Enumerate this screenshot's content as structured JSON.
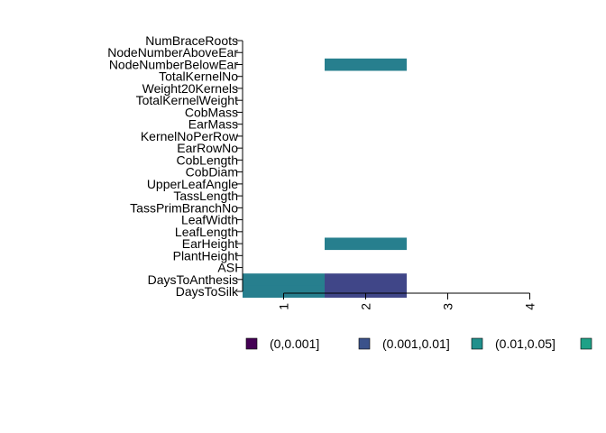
{
  "chart_data": {
    "type": "heatmap",
    "title": "",
    "xlabel": "",
    "ylabel": "",
    "x_ticks": [
      "1",
      "2",
      "3",
      "4"
    ],
    "xlim": [
      0.5,
      4.0
    ],
    "rows": [
      "NumBraceRoots",
      "NodeNumberAboveEar",
      "NodeNumberBelowEar",
      "TotalKernelNo",
      "Weight20Kernels",
      "TotalKernelWeight",
      "CobMass",
      "EarMass",
      "KernelNoPerRow",
      "EarRowNo",
      "CobLength",
      "CobDiam",
      "UpperLeafAngle",
      "TassLength",
      "TassPrimBranchNo",
      "LeafWidth",
      "LeafLength",
      "EarHeight",
      "PlantHeight",
      "ASI",
      "DaysToAnthesis",
      "DaysToSilk"
    ],
    "cells": [
      {
        "row": "NodeNumberBelowEar",
        "x": 2,
        "bin": 2
      },
      {
        "row": "EarHeight",
        "x": 2,
        "bin": 2
      },
      {
        "row": "DaysToAnthesis",
        "x": 1,
        "bin": 2
      },
      {
        "row": "DaysToSilk",
        "x": 1,
        "bin": 2
      },
      {
        "row": "DaysToAnthesis",
        "x": 2,
        "bin": 1
      },
      {
        "row": "DaysToSilk",
        "x": 2,
        "bin": 1
      }
    ],
    "legend": {
      "position": "bottom",
      "items": [
        {
          "label": "(0,0.001]",
          "color": "#440154"
        },
        {
          "label": "(0.001,0.01]",
          "color": "#3B528B"
        },
        {
          "label": "(0.01,0.05]",
          "color": "#21908C"
        },
        {
          "label": "",
          "color": "#1FA187"
        }
      ]
    },
    "colors": {
      "cell_bins": [
        "#440154",
        "#404688",
        "#277F8E",
        "#1FA187"
      ]
    }
  }
}
